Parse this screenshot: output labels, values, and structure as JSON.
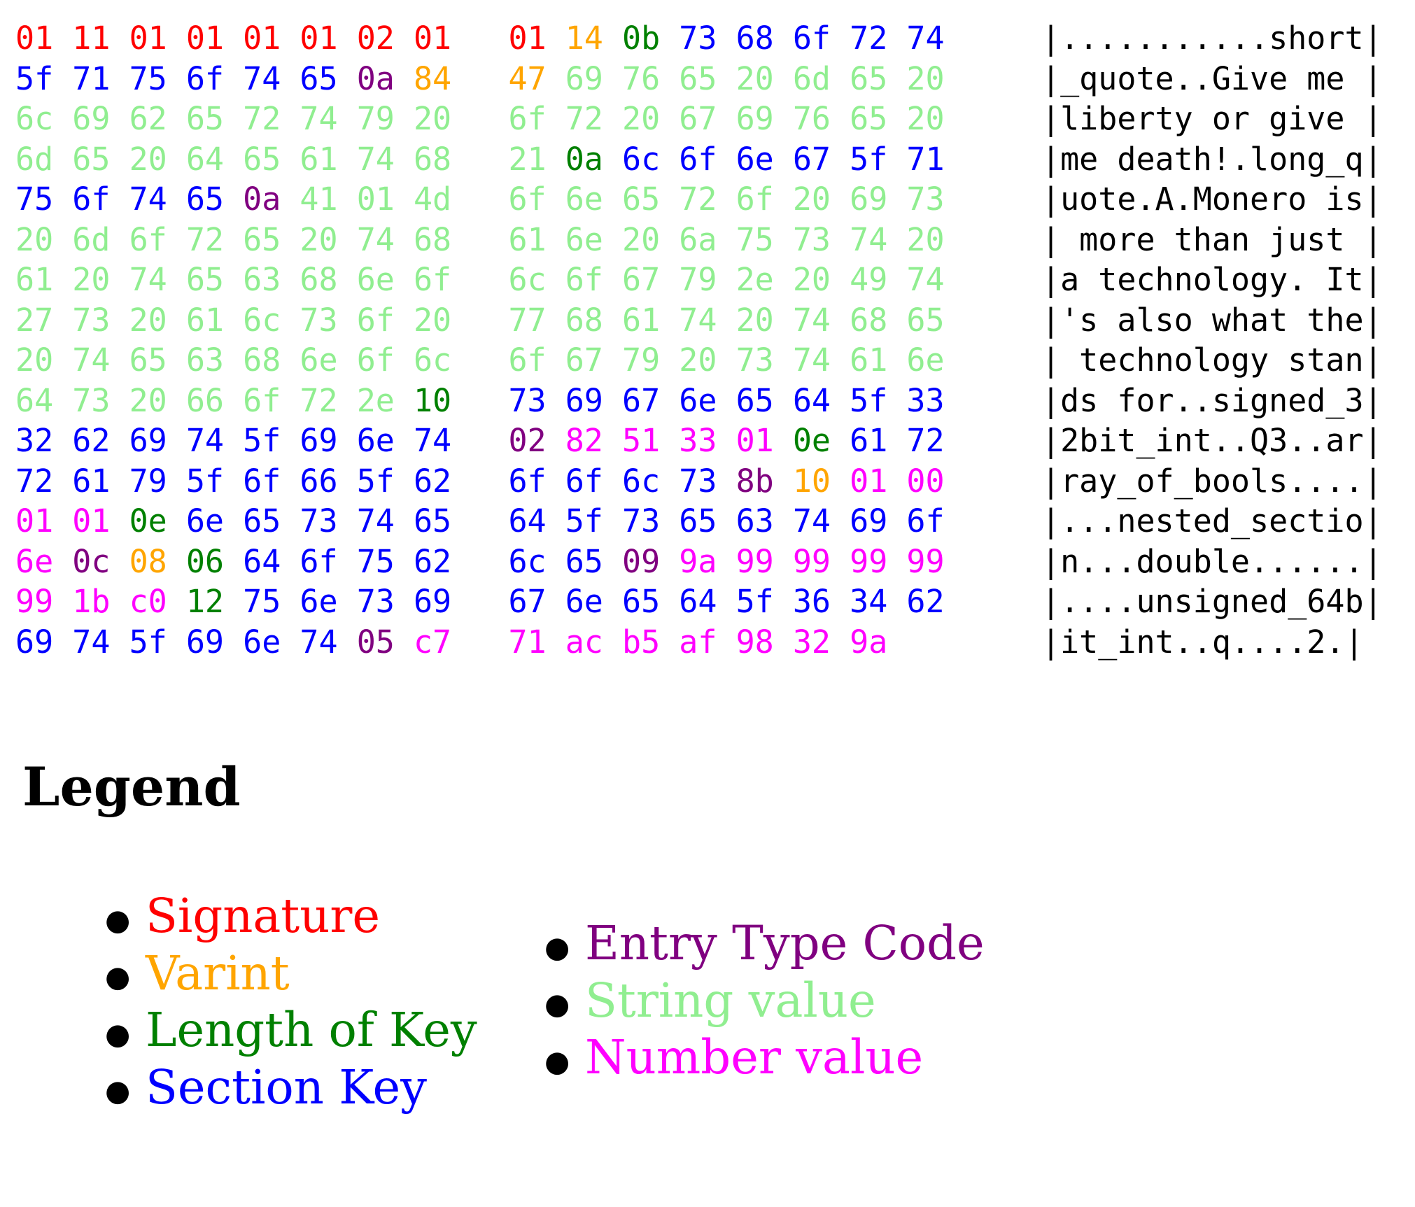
{
  "colors": {
    "S": {
      "name": "signature",
      "hex": "#ff0000"
    },
    "V": {
      "name": "varint",
      "hex": "#ffa500"
    },
    "L": {
      "name": "length-of-key",
      "hex": "#008000"
    },
    "K": {
      "name": "section-key",
      "hex": "#0000ff"
    },
    "E": {
      "name": "entry-type-code",
      "hex": "#800080"
    },
    "G": {
      "name": "string-value",
      "hex": "#90ee90"
    },
    "N": {
      "name": "number-value",
      "hex": "#ff00ff"
    },
    "ascii_text": "#000000"
  },
  "hex_dump": {
    "bytes_per_group": 8,
    "rows": [
      {
        "bytes": [
          "01",
          "11",
          "01",
          "01",
          "01",
          "01",
          "02",
          "01",
          "01",
          "14",
          "0b",
          "73",
          "68",
          "6f",
          "72",
          "74"
        ],
        "codes": [
          "S",
          "S",
          "S",
          "S",
          "S",
          "S",
          "S",
          "S",
          "S",
          "V",
          "L",
          "K",
          "K",
          "K",
          "K",
          "K"
        ],
        "ascii": "|...........short|"
      },
      {
        "bytes": [
          "5f",
          "71",
          "75",
          "6f",
          "74",
          "65",
          "0a",
          "84",
          "47",
          "69",
          "76",
          "65",
          "20",
          "6d",
          "65",
          "20"
        ],
        "codes": [
          "K",
          "K",
          "K",
          "K",
          "K",
          "K",
          "E",
          "V",
          "V",
          "G",
          "G",
          "G",
          "G",
          "G",
          "G",
          "G"
        ],
        "ascii": "|_quote..Give me |"
      },
      {
        "bytes": [
          "6c",
          "69",
          "62",
          "65",
          "72",
          "74",
          "79",
          "20",
          "6f",
          "72",
          "20",
          "67",
          "69",
          "76",
          "65",
          "20"
        ],
        "codes": [
          "G",
          "G",
          "G",
          "G",
          "G",
          "G",
          "G",
          "G",
          "G",
          "G",
          "G",
          "G",
          "G",
          "G",
          "G",
          "G"
        ],
        "ascii": "|liberty or give |"
      },
      {
        "bytes": [
          "6d",
          "65",
          "20",
          "64",
          "65",
          "61",
          "74",
          "68",
          "21",
          "0a",
          "6c",
          "6f",
          "6e",
          "67",
          "5f",
          "71"
        ],
        "codes": [
          "G",
          "G",
          "G",
          "G",
          "G",
          "G",
          "G",
          "G",
          "G",
          "L",
          "K",
          "K",
          "K",
          "K",
          "K",
          "K"
        ],
        "ascii": "|me death!.long_q|"
      },
      {
        "bytes": [
          "75",
          "6f",
          "74",
          "65",
          "0a",
          "41",
          "01",
          "4d",
          "6f",
          "6e",
          "65",
          "72",
          "6f",
          "20",
          "69",
          "73"
        ],
        "codes": [
          "K",
          "K",
          "K",
          "K",
          "E",
          "G",
          "G",
          "G",
          "G",
          "G",
          "G",
          "G",
          "G",
          "G",
          "G",
          "G"
        ],
        "ascii": "|uote.A.Monero is|"
      },
      {
        "bytes": [
          "20",
          "6d",
          "6f",
          "72",
          "65",
          "20",
          "74",
          "68",
          "61",
          "6e",
          "20",
          "6a",
          "75",
          "73",
          "74",
          "20"
        ],
        "codes": [
          "G",
          "G",
          "G",
          "G",
          "G",
          "G",
          "G",
          "G",
          "G",
          "G",
          "G",
          "G",
          "G",
          "G",
          "G",
          "G"
        ],
        "ascii": "| more than just |"
      },
      {
        "bytes": [
          "61",
          "20",
          "74",
          "65",
          "63",
          "68",
          "6e",
          "6f",
          "6c",
          "6f",
          "67",
          "79",
          "2e",
          "20",
          "49",
          "74"
        ],
        "codes": [
          "G",
          "G",
          "G",
          "G",
          "G",
          "G",
          "G",
          "G",
          "G",
          "G",
          "G",
          "G",
          "G",
          "G",
          "G",
          "G"
        ],
        "ascii": "|a technology. It|"
      },
      {
        "bytes": [
          "27",
          "73",
          "20",
          "61",
          "6c",
          "73",
          "6f",
          "20",
          "77",
          "68",
          "61",
          "74",
          "20",
          "74",
          "68",
          "65"
        ],
        "codes": [
          "G",
          "G",
          "G",
          "G",
          "G",
          "G",
          "G",
          "G",
          "G",
          "G",
          "G",
          "G",
          "G",
          "G",
          "G",
          "G"
        ],
        "ascii": "|'s also what the|"
      },
      {
        "bytes": [
          "20",
          "74",
          "65",
          "63",
          "68",
          "6e",
          "6f",
          "6c",
          "6f",
          "67",
          "79",
          "20",
          "73",
          "74",
          "61",
          "6e"
        ],
        "codes": [
          "G",
          "G",
          "G",
          "G",
          "G",
          "G",
          "G",
          "G",
          "G",
          "G",
          "G",
          "G",
          "G",
          "G",
          "G",
          "G"
        ],
        "ascii": "| technology stan|"
      },
      {
        "bytes": [
          "64",
          "73",
          "20",
          "66",
          "6f",
          "72",
          "2e",
          "10",
          "73",
          "69",
          "67",
          "6e",
          "65",
          "64",
          "5f",
          "33"
        ],
        "codes": [
          "G",
          "G",
          "G",
          "G",
          "G",
          "G",
          "G",
          "L",
          "K",
          "K",
          "K",
          "K",
          "K",
          "K",
          "K",
          "K"
        ],
        "ascii": "|ds for..signed_3|"
      },
      {
        "bytes": [
          "32",
          "62",
          "69",
          "74",
          "5f",
          "69",
          "6e",
          "74",
          "02",
          "82",
          "51",
          "33",
          "01",
          "0e",
          "61",
          "72"
        ],
        "codes": [
          "K",
          "K",
          "K",
          "K",
          "K",
          "K",
          "K",
          "K",
          "E",
          "N",
          "N",
          "N",
          "N",
          "L",
          "K",
          "K"
        ],
        "ascii": "|2bit_int..Q3..ar|"
      },
      {
        "bytes": [
          "72",
          "61",
          "79",
          "5f",
          "6f",
          "66",
          "5f",
          "62",
          "6f",
          "6f",
          "6c",
          "73",
          "8b",
          "10",
          "01",
          "00"
        ],
        "codes": [
          "K",
          "K",
          "K",
          "K",
          "K",
          "K",
          "K",
          "K",
          "K",
          "K",
          "K",
          "K",
          "E",
          "V",
          "N",
          "N"
        ],
        "ascii": "|ray_of_bools....|"
      },
      {
        "bytes": [
          "01",
          "01",
          "0e",
          "6e",
          "65",
          "73",
          "74",
          "65",
          "64",
          "5f",
          "73",
          "65",
          "63",
          "74",
          "69",
          "6f"
        ],
        "codes": [
          "N",
          "N",
          "L",
          "K",
          "K",
          "K",
          "K",
          "K",
          "K",
          "K",
          "K",
          "K",
          "K",
          "K",
          "K",
          "K"
        ],
        "ascii": "|...nested_sectio|"
      },
      {
        "bytes": [
          "6e",
          "0c",
          "08",
          "06",
          "64",
          "6f",
          "75",
          "62",
          "6c",
          "65",
          "09",
          "9a",
          "99",
          "99",
          "99",
          "99"
        ],
        "codes": [
          "N",
          "E",
          "V",
          "L",
          "K",
          "K",
          "K",
          "K",
          "K",
          "K",
          "E",
          "N",
          "N",
          "N",
          "N",
          "N"
        ],
        "ascii": "|n...double......|"
      },
      {
        "bytes": [
          "99",
          "1b",
          "c0",
          "12",
          "75",
          "6e",
          "73",
          "69",
          "67",
          "6e",
          "65",
          "64",
          "5f",
          "36",
          "34",
          "62"
        ],
        "codes": [
          "N",
          "N",
          "N",
          "L",
          "K",
          "K",
          "K",
          "K",
          "K",
          "K",
          "K",
          "K",
          "K",
          "K",
          "K",
          "K"
        ],
        "ascii": "|....unsigned_64b|"
      },
      {
        "bytes": [
          "69",
          "74",
          "5f",
          "69",
          "6e",
          "74",
          "05",
          "c7",
          "71",
          "ac",
          "b5",
          "af",
          "98",
          "32",
          "9a"
        ],
        "codes": [
          "K",
          "K",
          "K",
          "K",
          "K",
          "K",
          "E",
          "N",
          "N",
          "N",
          "N",
          "N",
          "N",
          "N",
          "N"
        ],
        "ascii": "|it_int..q....2.|"
      }
    ]
  },
  "legend": {
    "title": "Legend",
    "bullet_glyph": "●",
    "left_items": [
      {
        "label": "Signature",
        "color": "S"
      },
      {
        "label": "Varint",
        "color": "V"
      },
      {
        "label": "Length of Key",
        "color": "L"
      },
      {
        "label": "Section Key",
        "color": "K"
      }
    ],
    "right_items": [
      {
        "label": "Entry Type Code",
        "color": "E"
      },
      {
        "label": "String value",
        "color": "G"
      },
      {
        "label": "Number value",
        "color": "N"
      }
    ]
  }
}
